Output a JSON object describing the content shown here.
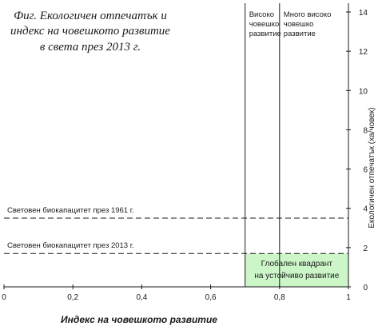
{
  "chart_data": {
    "type": "scatter",
    "title_lines": [
      "Фиг. Екологичен отпечатък и",
      "индекс на човешкото развитие",
      "в света през 2013 г."
    ],
    "xlabel": "Индекс на човешкото развитие",
    "ylabel": "Екологичен отпечатък (ха/човек)",
    "xlim": [
      0,
      1
    ],
    "ylim": [
      0,
      14.5
    ],
    "x_ticks": [
      0,
      0.2,
      0.4,
      0.6,
      0.8,
      1
    ],
    "x_tick_labels": [
      "0",
      "0,2",
      "0,4",
      "0,6",
      "0,8",
      "1"
    ],
    "y_ticks": [
      0,
      2,
      4,
      6,
      8,
      10,
      12,
      14
    ],
    "y_tick_labels": [
      "0",
      "2",
      "4",
      "6",
      "8",
      "10",
      "12",
      "14"
    ],
    "grid": false,
    "vertical_lines": [
      {
        "x": 0.7,
        "label": [
          "Високо",
          "човешко",
          "развитие"
        ]
      },
      {
        "x": 0.8,
        "label": [
          "Много високо",
          "човешко",
          "развитие"
        ]
      }
    ],
    "horizontal_lines": [
      {
        "y": 3.5,
        "label": "Световен биокапацитет през 1961 г."
      },
      {
        "y": 1.7,
        "label": "Световен биокапацитет през 2013 г."
      }
    ],
    "quadrant": {
      "x_range": [
        0.7,
        1
      ],
      "y_range": [
        0,
        1.7
      ],
      "label": [
        "Глобален квадрант",
        "на устойчиво развитие"
      ],
      "color": "#ccf5c8"
    },
    "series": [
      {
        "points": []
      }
    ]
  }
}
